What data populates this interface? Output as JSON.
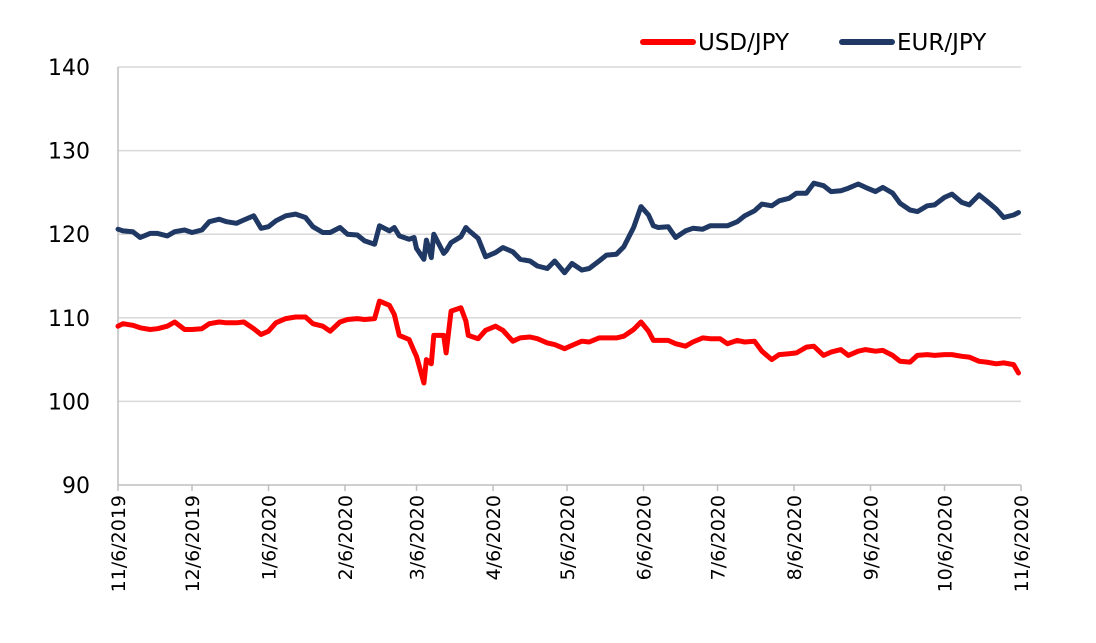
{
  "chart_data": {
    "type": "line",
    "title": "",
    "xlabel": "",
    "ylabel": "",
    "ylim": [
      90,
      140
    ],
    "y_ticks": [
      "90",
      "100",
      "110",
      "120",
      "130",
      "140"
    ],
    "x_ticks": [
      "11/6/2019",
      "12/6/2019",
      "1/6/2020",
      "2/6/2020",
      "3/6/2020",
      "4/6/2020",
      "5/6/2020",
      "6/6/2020",
      "7/6/2020",
      "8/6/2020",
      "9/6/2020",
      "10/6/2020",
      "11/6/2020"
    ],
    "grid": "horizontal",
    "legend_position": "top-right",
    "series": [
      {
        "name": "USD/JPY",
        "color": "#ff0000",
        "points": [
          [
            "2019-11-06",
            109.0
          ],
          [
            "2019-11-08",
            109.3
          ],
          [
            "2019-11-12",
            109.1
          ],
          [
            "2019-11-15",
            108.8
          ],
          [
            "2019-11-19",
            108.6
          ],
          [
            "2019-11-22",
            108.7
          ],
          [
            "2019-11-26",
            109.0
          ],
          [
            "2019-11-29",
            109.5
          ],
          [
            "2019-12-03",
            108.6
          ],
          [
            "2019-12-06",
            108.6
          ],
          [
            "2019-12-10",
            108.7
          ],
          [
            "2019-12-13",
            109.3
          ],
          [
            "2019-12-17",
            109.5
          ],
          [
            "2019-12-20",
            109.4
          ],
          [
            "2019-12-24",
            109.4
          ],
          [
            "2019-12-27",
            109.5
          ],
          [
            "2019-12-31",
            108.7
          ],
          [
            "2020-01-03",
            108.0
          ],
          [
            "2020-01-06",
            108.4
          ],
          [
            "2020-01-09",
            109.4
          ],
          [
            "2020-01-13",
            109.9
          ],
          [
            "2020-01-17",
            110.1
          ],
          [
            "2020-01-21",
            110.1
          ],
          [
            "2020-01-24",
            109.3
          ],
          [
            "2020-01-28",
            109.0
          ],
          [
            "2020-01-31",
            108.4
          ],
          [
            "2020-02-04",
            109.5
          ],
          [
            "2020-02-07",
            109.8
          ],
          [
            "2020-02-11",
            109.9
          ],
          [
            "2020-02-14",
            109.8
          ],
          [
            "2020-02-18",
            109.9
          ],
          [
            "2020-02-20",
            112.0
          ],
          [
            "2020-02-24",
            111.5
          ],
          [
            "2020-02-26",
            110.4
          ],
          [
            "2020-02-28",
            107.9
          ],
          [
            "2020-03-03",
            107.4
          ],
          [
            "2020-03-05",
            106.0
          ],
          [
            "2020-03-06",
            105.4
          ],
          [
            "2020-03-09",
            102.2
          ],
          [
            "2020-03-10",
            105.0
          ],
          [
            "2020-03-12",
            104.5
          ],
          [
            "2020-03-13",
            107.9
          ],
          [
            "2020-03-17",
            107.9
          ],
          [
            "2020-03-18",
            105.8
          ],
          [
            "2020-03-20",
            110.8
          ],
          [
            "2020-03-24",
            111.2
          ],
          [
            "2020-03-26",
            109.6
          ],
          [
            "2020-03-27",
            107.9
          ],
          [
            "2020-03-31",
            107.5
          ],
          [
            "2020-04-03",
            108.5
          ],
          [
            "2020-04-07",
            109.0
          ],
          [
            "2020-04-10",
            108.5
          ],
          [
            "2020-04-14",
            107.2
          ],
          [
            "2020-04-17",
            107.6
          ],
          [
            "2020-04-21",
            107.7
          ],
          [
            "2020-04-24",
            107.5
          ],
          [
            "2020-04-28",
            107.0
          ],
          [
            "2020-05-01",
            106.8
          ],
          [
            "2020-05-05",
            106.3
          ],
          [
            "2020-05-08",
            106.7
          ],
          [
            "2020-05-12",
            107.2
          ],
          [
            "2020-05-15",
            107.1
          ],
          [
            "2020-05-19",
            107.6
          ],
          [
            "2020-05-22",
            107.6
          ],
          [
            "2020-05-26",
            107.6
          ],
          [
            "2020-05-29",
            107.8
          ],
          [
            "2020-06-02",
            108.6
          ],
          [
            "2020-06-05",
            109.5
          ],
          [
            "2020-06-08",
            108.4
          ],
          [
            "2020-06-10",
            107.3
          ],
          [
            "2020-06-12",
            107.3
          ],
          [
            "2020-06-16",
            107.3
          ],
          [
            "2020-06-19",
            106.9
          ],
          [
            "2020-06-23",
            106.6
          ],
          [
            "2020-06-26",
            107.1
          ],
          [
            "2020-06-30",
            107.6
          ],
          [
            "2020-07-03",
            107.5
          ],
          [
            "2020-07-07",
            107.5
          ],
          [
            "2020-07-10",
            106.9
          ],
          [
            "2020-07-14",
            107.3
          ],
          [
            "2020-07-17",
            107.1
          ],
          [
            "2020-07-21",
            107.2
          ],
          [
            "2020-07-24",
            106.0
          ],
          [
            "2020-07-28",
            105.0
          ],
          [
            "2020-07-31",
            105.6
          ],
          [
            "2020-08-04",
            105.7
          ],
          [
            "2020-08-07",
            105.8
          ],
          [
            "2020-08-11",
            106.5
          ],
          [
            "2020-08-14",
            106.6
          ],
          [
            "2020-08-18",
            105.5
          ],
          [
            "2020-08-21",
            105.9
          ],
          [
            "2020-08-25",
            106.2
          ],
          [
            "2020-08-28",
            105.5
          ],
          [
            "2020-09-01",
            106.0
          ],
          [
            "2020-09-04",
            106.2
          ],
          [
            "2020-09-08",
            106.0
          ],
          [
            "2020-09-11",
            106.1
          ],
          [
            "2020-09-15",
            105.5
          ],
          [
            "2020-09-18",
            104.8
          ],
          [
            "2020-09-22",
            104.7
          ],
          [
            "2020-09-25",
            105.5
          ],
          [
            "2020-09-29",
            105.6
          ],
          [
            "2020-10-02",
            105.5
          ],
          [
            "2020-10-06",
            105.6
          ],
          [
            "2020-10-09",
            105.6
          ],
          [
            "2020-10-13",
            105.4
          ],
          [
            "2020-10-16",
            105.3
          ],
          [
            "2020-10-20",
            104.8
          ],
          [
            "2020-10-23",
            104.7
          ],
          [
            "2020-10-27",
            104.5
          ],
          [
            "2020-10-30",
            104.6
          ],
          [
            "2020-11-03",
            104.4
          ],
          [
            "2020-11-05",
            103.4
          ]
        ]
      },
      {
        "name": "EUR/JPY",
        "color": "#1f3864",
        "points": [
          [
            "2019-11-06",
            120.6
          ],
          [
            "2019-11-08",
            120.4
          ],
          [
            "2019-11-12",
            120.3
          ],
          [
            "2019-11-15",
            119.6
          ],
          [
            "2019-11-19",
            120.1
          ],
          [
            "2019-11-22",
            120.1
          ],
          [
            "2019-11-26",
            119.8
          ],
          [
            "2019-11-29",
            120.3
          ],
          [
            "2019-12-03",
            120.5
          ],
          [
            "2019-12-06",
            120.2
          ],
          [
            "2019-12-10",
            120.5
          ],
          [
            "2019-12-13",
            121.5
          ],
          [
            "2019-12-17",
            121.8
          ],
          [
            "2019-12-20",
            121.5
          ],
          [
            "2019-12-24",
            121.3
          ],
          [
            "2019-12-27",
            121.7
          ],
          [
            "2019-12-31",
            122.2
          ],
          [
            "2020-01-03",
            120.7
          ],
          [
            "2020-01-06",
            120.9
          ],
          [
            "2020-01-09",
            121.6
          ],
          [
            "2020-01-13",
            122.2
          ],
          [
            "2020-01-17",
            122.4
          ],
          [
            "2020-01-21",
            122.0
          ],
          [
            "2020-01-24",
            120.9
          ],
          [
            "2020-01-28",
            120.2
          ],
          [
            "2020-01-31",
            120.2
          ],
          [
            "2020-02-04",
            120.8
          ],
          [
            "2020-02-07",
            120.0
          ],
          [
            "2020-02-11",
            119.9
          ],
          [
            "2020-02-14",
            119.2
          ],
          [
            "2020-02-18",
            118.8
          ],
          [
            "2020-02-20",
            121.0
          ],
          [
            "2020-02-24",
            120.4
          ],
          [
            "2020-02-26",
            120.8
          ],
          [
            "2020-02-28",
            119.8
          ],
          [
            "2020-03-03",
            119.4
          ],
          [
            "2020-03-05",
            119.6
          ],
          [
            "2020-03-06",
            118.3
          ],
          [
            "2020-03-09",
            117.0
          ],
          [
            "2020-03-10",
            119.3
          ],
          [
            "2020-03-12",
            117.2
          ],
          [
            "2020-03-13",
            120.0
          ],
          [
            "2020-03-17",
            117.7
          ],
          [
            "2020-03-18",
            118.0
          ],
          [
            "2020-03-20",
            119.0
          ],
          [
            "2020-03-24",
            119.7
          ],
          [
            "2020-03-26",
            120.8
          ],
          [
            "2020-03-27",
            120.5
          ],
          [
            "2020-03-31",
            119.5
          ],
          [
            "2020-04-03",
            117.3
          ],
          [
            "2020-04-07",
            117.8
          ],
          [
            "2020-04-10",
            118.4
          ],
          [
            "2020-04-14",
            117.9
          ],
          [
            "2020-04-17",
            117.0
          ],
          [
            "2020-04-21",
            116.8
          ],
          [
            "2020-04-24",
            116.2
          ],
          [
            "2020-04-28",
            115.9
          ],
          [
            "2020-05-01",
            116.8
          ],
          [
            "2020-05-05",
            115.4
          ],
          [
            "2020-05-08",
            116.5
          ],
          [
            "2020-05-12",
            115.7
          ],
          [
            "2020-05-15",
            115.9
          ],
          [
            "2020-05-19",
            116.8
          ],
          [
            "2020-05-22",
            117.5
          ],
          [
            "2020-05-26",
            117.6
          ],
          [
            "2020-05-29",
            118.5
          ],
          [
            "2020-06-02",
            120.8
          ],
          [
            "2020-06-05",
            123.3
          ],
          [
            "2020-06-08",
            122.3
          ],
          [
            "2020-06-10",
            121.0
          ],
          [
            "2020-06-12",
            120.8
          ],
          [
            "2020-06-16",
            120.9
          ],
          [
            "2020-06-19",
            119.6
          ],
          [
            "2020-06-23",
            120.4
          ],
          [
            "2020-06-26",
            120.7
          ],
          [
            "2020-06-30",
            120.6
          ],
          [
            "2020-07-03",
            121.0
          ],
          [
            "2020-07-07",
            121.0
          ],
          [
            "2020-07-10",
            121.0
          ],
          [
            "2020-07-14",
            121.5
          ],
          [
            "2020-07-17",
            122.2
          ],
          [
            "2020-07-21",
            122.8
          ],
          [
            "2020-07-24",
            123.6
          ],
          [
            "2020-07-28",
            123.4
          ],
          [
            "2020-07-31",
            124.0
          ],
          [
            "2020-08-04",
            124.3
          ],
          [
            "2020-08-07",
            124.9
          ],
          [
            "2020-08-11",
            124.9
          ],
          [
            "2020-08-14",
            126.1
          ],
          [
            "2020-08-18",
            125.8
          ],
          [
            "2020-08-21",
            125.1
          ],
          [
            "2020-08-25",
            125.2
          ],
          [
            "2020-08-28",
            125.5
          ],
          [
            "2020-09-01",
            126.0
          ],
          [
            "2020-09-04",
            125.6
          ],
          [
            "2020-09-08",
            125.1
          ],
          [
            "2020-09-11",
            125.6
          ],
          [
            "2020-09-15",
            124.9
          ],
          [
            "2020-09-18",
            123.7
          ],
          [
            "2020-09-22",
            122.9
          ],
          [
            "2020-09-25",
            122.7
          ],
          [
            "2020-09-29",
            123.4
          ],
          [
            "2020-10-02",
            123.5
          ],
          [
            "2020-10-06",
            124.4
          ],
          [
            "2020-10-09",
            124.8
          ],
          [
            "2020-10-13",
            123.8
          ],
          [
            "2020-10-16",
            123.5
          ],
          [
            "2020-10-20",
            124.7
          ],
          [
            "2020-10-23",
            124.0
          ],
          [
            "2020-10-27",
            123.0
          ],
          [
            "2020-10-30",
            122.0
          ],
          [
            "2020-11-03",
            122.3
          ],
          [
            "2020-11-05",
            122.6
          ]
        ]
      }
    ]
  }
}
